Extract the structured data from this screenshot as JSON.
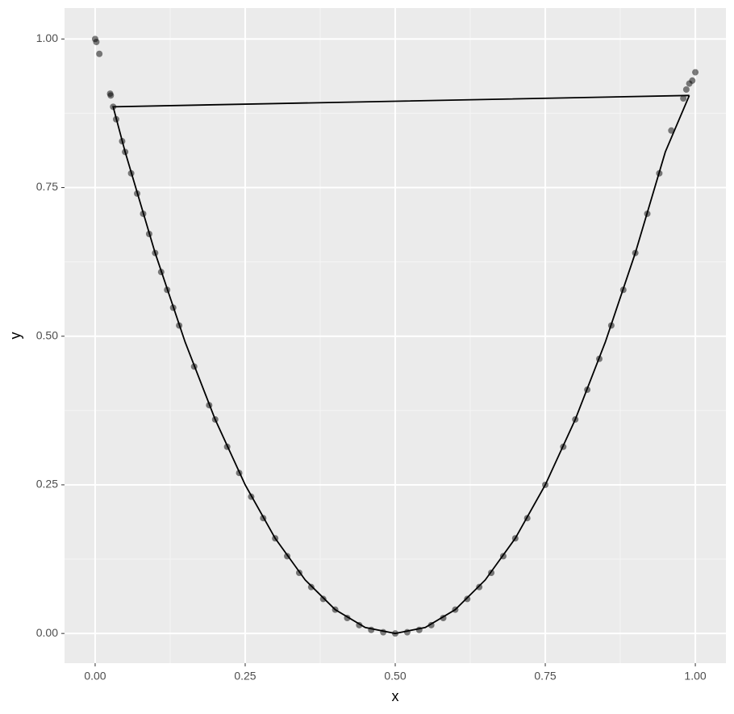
{
  "chart_data": {
    "type": "scatter",
    "xlabel": "x",
    "ylabel": "y",
    "xlim": [
      -0.051,
      1.051
    ],
    "ylim": [
      -0.05,
      1.052
    ],
    "xticks": [
      {
        "value": 0,
        "label": "0.00"
      },
      {
        "value": 0.25,
        "label": "0.25"
      },
      {
        "value": 0.5,
        "label": "0.50"
      },
      {
        "value": 0.75,
        "label": "0.75"
      },
      {
        "value": 1,
        "label": "1.00"
      }
    ],
    "yticks": [
      {
        "value": 0,
        "label": "0.00"
      },
      {
        "value": 0.25,
        "label": "0.25"
      },
      {
        "value": 0.5,
        "label": "0.50"
      },
      {
        "value": 0.75,
        "label": "0.75"
      },
      {
        "value": 1,
        "label": "1.00"
      }
    ],
    "x_minor_grid": [
      0.125,
      0.375,
      0.625,
      0.875
    ],
    "y_minor_grid": [
      0.125,
      0.375,
      0.625,
      0.875
    ],
    "grid": true,
    "point_color": "#000000",
    "line_color": "#000000",
    "points": {
      "x": [
        0,
        0.002,
        0.007,
        0.025,
        0.026,
        0.03,
        0.035,
        0.045,
        0.05,
        0.06,
        0.07,
        0.08,
        0.09,
        0.1,
        0.11,
        0.12,
        0.13,
        0.14,
        0.165,
        0.19,
        0.2,
        0.22,
        0.24,
        0.26,
        0.28,
        0.3,
        0.32,
        0.34,
        0.36,
        0.38,
        0.4,
        0.42,
        0.44,
        0.46,
        0.48,
        0.5,
        0.52,
        0.54,
        0.56,
        0.58,
        0.6,
        0.62,
        0.64,
        0.66,
        0.68,
        0.7,
        0.72,
        0.75,
        0.78,
        0.8,
        0.82,
        0.84,
        0.86,
        0.88,
        0.9,
        0.92,
        0.94,
        0.96,
        0.98,
        0.985,
        0.99,
        0.995,
        1.0
      ],
      "y": [
        1.0,
        0.995,
        0.975,
        0.908,
        0.905,
        0.886,
        0.865,
        0.828,
        0.81,
        0.774,
        0.74,
        0.706,
        0.672,
        0.64,
        0.608,
        0.578,
        0.548,
        0.518,
        0.449,
        0.384,
        0.36,
        0.314,
        0.27,
        0.23,
        0.194,
        0.16,
        0.13,
        0.102,
        0.078,
        0.058,
        0.04,
        0.026,
        0.014,
        0.006,
        0.002,
        0,
        0.002,
        0.006,
        0.014,
        0.026,
        0.04,
        0.058,
        0.078,
        0.102,
        0.13,
        0.16,
        0.194,
        0.25,
        0.314,
        0.36,
        0.41,
        0.462,
        0.518,
        0.578,
        0.64,
        0.706,
        0.774,
        0.846,
        0.9,
        0.915,
        0.925,
        0.93,
        0.944
      ]
    },
    "path": {
      "x": [
        0.99,
        0.95,
        0.9,
        0.85,
        0.8,
        0.75,
        0.7,
        0.65,
        0.6,
        0.55,
        0.5,
        0.45,
        0.4,
        0.35,
        0.3,
        0.25,
        0.2,
        0.15,
        0.1,
        0.05,
        0.03,
        0.99
      ],
      "y": [
        0.905,
        0.81,
        0.64,
        0.49,
        0.36,
        0.25,
        0.16,
        0.09,
        0.04,
        0.01,
        0,
        0.01,
        0.04,
        0.09,
        0.16,
        0.25,
        0.36,
        0.49,
        0.64,
        0.81,
        0.886,
        0.905
      ]
    }
  }
}
